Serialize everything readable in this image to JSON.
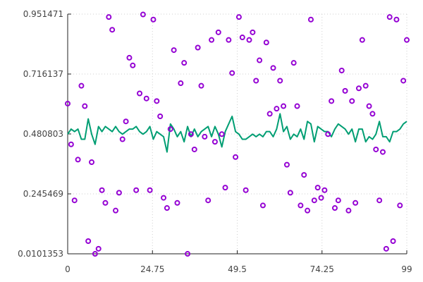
{
  "chart_data": {
    "type": "scatter",
    "title": "",
    "xlabel": "",
    "ylabel": "",
    "xlim": [
      0,
      99
    ],
    "ylim": [
      0.0101353,
      0.951471
    ],
    "grid": true,
    "legend": "none",
    "x_tick_labels": [
      "0",
      "24.75",
      "49.5",
      "74.25",
      "99"
    ],
    "x_tick_values": [
      0,
      24.75,
      49.5,
      74.25,
      99
    ],
    "y_tick_labels": [
      "0.0101353",
      "0.245469",
      "0.480803",
      "0.716137",
      "0.951471"
    ],
    "y_tick_values": [
      0.0101353,
      0.245469,
      0.480803,
      0.716137,
      0.951471
    ],
    "series": [
      {
        "kind": "scatter",
        "color": "#9400d3",
        "x": [
          0,
          1,
          2,
          3,
          4,
          5,
          6,
          7,
          8,
          9,
          10,
          11,
          12,
          13,
          14,
          15,
          16,
          17,
          18,
          19,
          20,
          21,
          22,
          23,
          24,
          25,
          26,
          27,
          28,
          29,
          30,
          31,
          32,
          33,
          34,
          35,
          36,
          37,
          38,
          39,
          40,
          41,
          42,
          43,
          44,
          45,
          46,
          47,
          48,
          49,
          50,
          51,
          52,
          53,
          54,
          55,
          56,
          57,
          58,
          59,
          60,
          61,
          62,
          63,
          64,
          65,
          66,
          67,
          68,
          69,
          70,
          71,
          72,
          73,
          74,
          75,
          76,
          77,
          78,
          79,
          80,
          81,
          82,
          83,
          84,
          85,
          86,
          87,
          88,
          89,
          90,
          91,
          92,
          93,
          94,
          95,
          96,
          97,
          98,
          99
        ],
        "y": [
          0.6,
          0.44,
          0.22,
          0.38,
          0.67,
          0.59,
          0.06,
          0.37,
          0.01,
          0.03,
          0.26,
          0.21,
          0.94,
          0.89,
          0.18,
          0.25,
          0.46,
          0.53,
          0.78,
          0.75,
          0.26,
          0.64,
          0.95,
          0.62,
          0.26,
          0.93,
          0.61,
          0.55,
          0.23,
          0.19,
          0.5,
          0.81,
          0.21,
          0.68,
          0.76,
          0.01,
          0.48,
          0.42,
          0.82,
          0.67,
          0.47,
          0.22,
          0.85,
          0.45,
          0.88,
          0.48,
          0.27,
          0.85,
          0.72,
          0.39,
          0.94,
          0.86,
          0.26,
          0.85,
          0.88,
          0.69,
          0.77,
          0.2,
          0.84,
          0.56,
          0.74,
          0.58,
          0.69,
          0.59,
          0.36,
          0.25,
          0.76,
          0.59,
          0.2,
          0.32,
          0.18,
          0.93,
          0.22,
          0.27,
          0.23,
          0.26,
          0.48,
          0.61,
          0.19,
          0.22,
          0.73,
          0.65,
          0.18,
          0.61,
          0.21,
          0.66,
          0.85,
          0.67,
          0.59,
          0.56,
          0.42,
          0.22,
          0.41,
          0.03,
          0.94,
          0.06,
          0.93,
          0.2,
          0.69,
          0.85
        ]
      },
      {
        "kind": "line",
        "color": "#009e73",
        "x": [
          0,
          1,
          2,
          3,
          4,
          5,
          6,
          7,
          8,
          9,
          10,
          11,
          12,
          13,
          14,
          15,
          16,
          17,
          18,
          19,
          20,
          21,
          22,
          23,
          24,
          25,
          26,
          27,
          28,
          29,
          30,
          31,
          32,
          33,
          34,
          35,
          36,
          37,
          38,
          39,
          40,
          41,
          42,
          43,
          44,
          45,
          46,
          47,
          48,
          49,
          50,
          51,
          52,
          53,
          54,
          55,
          56,
          57,
          58,
          59,
          60,
          61,
          62,
          63,
          64,
          65,
          66,
          67,
          68,
          69,
          70,
          71,
          72,
          73,
          74,
          75,
          76,
          77,
          78,
          79,
          80,
          81,
          82,
          83,
          84,
          85,
          86,
          87,
          88,
          89,
          90,
          91,
          92,
          93,
          94,
          95,
          96,
          97,
          98,
          99
        ],
        "y": [
          0.48,
          0.5,
          0.49,
          0.5,
          0.46,
          0.46,
          0.54,
          0.48,
          0.44,
          0.51,
          0.49,
          0.51,
          0.5,
          0.49,
          0.51,
          0.49,
          0.48,
          0.49,
          0.5,
          0.5,
          0.51,
          0.49,
          0.48,
          0.49,
          0.51,
          0.46,
          0.49,
          0.48,
          0.47,
          0.41,
          0.52,
          0.5,
          0.47,
          0.49,
          0.45,
          0.51,
          0.47,
          0.5,
          0.47,
          0.49,
          0.5,
          0.51,
          0.47,
          0.51,
          0.48,
          0.43,
          0.49,
          0.52,
          0.55,
          0.49,
          0.48,
          0.46,
          0.46,
          0.47,
          0.48,
          0.47,
          0.48,
          0.47,
          0.49,
          0.49,
          0.47,
          0.5,
          0.56,
          0.49,
          0.51,
          0.46,
          0.48,
          0.47,
          0.5,
          0.46,
          0.53,
          0.52,
          0.45,
          0.51,
          0.5,
          0.49,
          0.49,
          0.47,
          0.5,
          0.52,
          0.51,
          0.5,
          0.48,
          0.5,
          0.45,
          0.5,
          0.5,
          0.45,
          0.47,
          0.46,
          0.48,
          0.53,
          0.47,
          0.47,
          0.45,
          0.49,
          0.49,
          0.5,
          0.52,
          0.53
        ]
      }
    ]
  }
}
